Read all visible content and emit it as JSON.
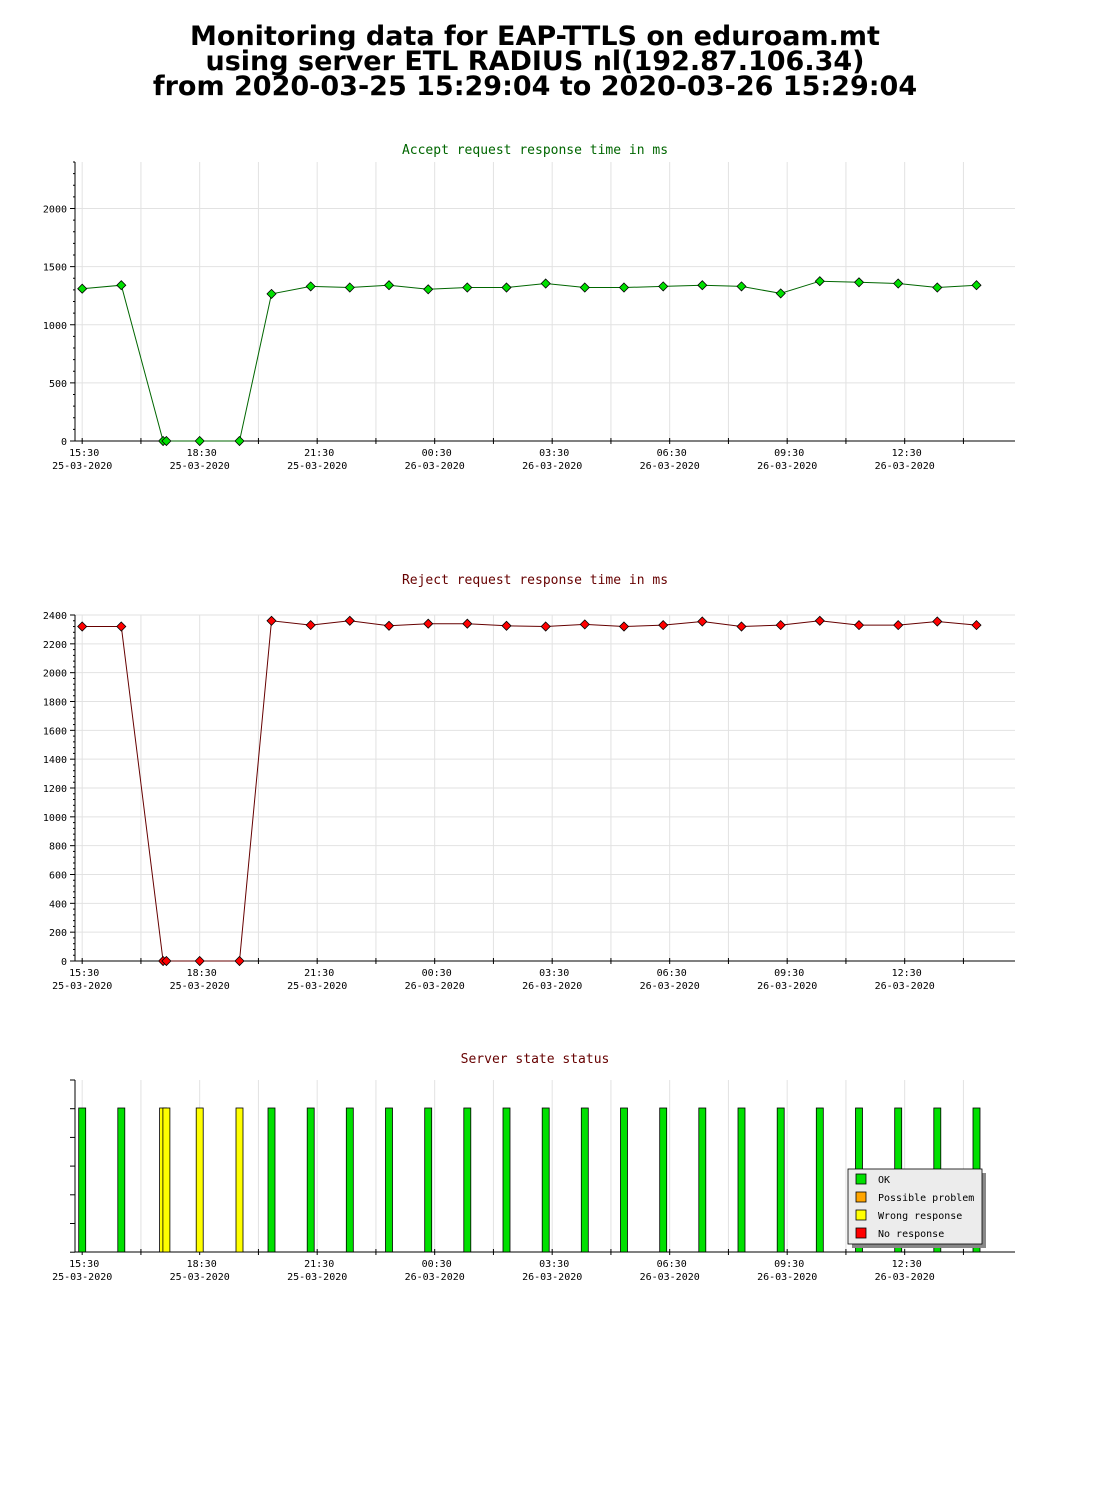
{
  "header": {
    "line1": "Monitoring data for EAP-TTLS on eduroam.mt",
    "line2": "using server ETL RADIUS nl(192.87.106.34)",
    "line3": "from 2020-03-25 15:29:04 to 2020-03-26 15:29:04"
  },
  "colors": {
    "ok": "#00e000",
    "possible": "#ffa500",
    "wrong": "#ffff00",
    "none": "#ff0000",
    "accent_title": "#006600",
    "reject_title": "#660000"
  },
  "x_ticks": [
    {
      "time": "15:30",
      "date": "25-03-2020"
    },
    {
      "time": "18:30",
      "date": "25-03-2020"
    },
    {
      "time": "21:30",
      "date": "25-03-2020"
    },
    {
      "time": "00:30",
      "date": "26-03-2020"
    },
    {
      "time": "03:30",
      "date": "26-03-2020"
    },
    {
      "time": "06:30",
      "date": "26-03-2020"
    },
    {
      "time": "09:30",
      "date": "26-03-2020"
    },
    {
      "time": "12:30",
      "date": "26-03-2020"
    }
  ],
  "chart_data": [
    {
      "type": "line",
      "title": "Accept request response time in ms",
      "x_range": [
        "2020-03-25 15:19",
        "2020-03-26 15:19"
      ],
      "ylim": [
        0,
        2400
      ],
      "y_ticks": [
        0,
        500,
        1000,
        1500,
        2000
      ],
      "x": [
        "2020-03-25 15:30",
        "2020-03-25 16:30",
        "2020-03-25 17:34",
        "2020-03-25 17:39",
        "2020-03-25 18:30",
        "2020-03-25 19:31",
        "2020-03-25 20:20",
        "2020-03-25 21:20",
        "2020-03-25 22:20",
        "2020-03-25 23:20",
        "2020-03-26 00:20",
        "2020-03-26 01:20",
        "2020-03-26 02:20",
        "2020-03-26 03:20",
        "2020-03-26 04:20",
        "2020-03-26 05:20",
        "2020-03-26 06:20",
        "2020-03-26 07:20",
        "2020-03-26 08:20",
        "2020-03-26 09:20",
        "2020-03-26 10:20",
        "2020-03-26 11:20",
        "2020-03-26 12:20",
        "2020-03-26 13:20",
        "2020-03-26 14:20"
      ],
      "values": [
        1310,
        1340,
        0,
        0,
        0,
        0,
        1265,
        1330,
        1320,
        1340,
        1305,
        1320,
        1320,
        1355,
        1320,
        1320,
        1330,
        1340,
        1330,
        1270,
        1375,
        1365,
        1355,
        1320,
        1340
      ]
    },
    {
      "type": "line",
      "title": "Reject request response time in ms",
      "x_range": [
        "2020-03-25 15:19",
        "2020-03-26 15:19"
      ],
      "ylim": [
        0,
        2400
      ],
      "y_ticks": [
        0,
        200,
        400,
        600,
        800,
        1000,
        1200,
        1400,
        1600,
        1800,
        2000,
        2200,
        2400
      ],
      "x": [
        "2020-03-25 15:30",
        "2020-03-25 16:30",
        "2020-03-25 17:34",
        "2020-03-25 17:39",
        "2020-03-25 18:30",
        "2020-03-25 19:31",
        "2020-03-25 20:20",
        "2020-03-25 21:20",
        "2020-03-25 22:20",
        "2020-03-25 23:20",
        "2020-03-26 00:20",
        "2020-03-26 01:20",
        "2020-03-26 02:20",
        "2020-03-26 03:20",
        "2020-03-26 04:20",
        "2020-03-26 05:20",
        "2020-03-26 06:20",
        "2020-03-26 07:20",
        "2020-03-26 08:20",
        "2020-03-26 09:20",
        "2020-03-26 10:20",
        "2020-03-26 11:20",
        "2020-03-26 12:20",
        "2020-03-26 13:20",
        "2020-03-26 14:20"
      ],
      "values": [
        2320,
        2320,
        0,
        0,
        0,
        0,
        2360,
        2330,
        2360,
        2325,
        2340,
        2340,
        2325,
        2320,
        2335,
        2320,
        2330,
        2355,
        2320,
        2330,
        2360,
        2330,
        2330,
        2355,
        2330
      ]
    },
    {
      "type": "bar",
      "title": "Server state status",
      "x_range": [
        "2020-03-25 15:19",
        "2020-03-26 15:19"
      ],
      "x": [
        "2020-03-25 15:30",
        "2020-03-25 16:30",
        "2020-03-25 17:34",
        "2020-03-25 17:39",
        "2020-03-25 18:30",
        "2020-03-25 19:31",
        "2020-03-25 20:20",
        "2020-03-25 21:20",
        "2020-03-25 22:20",
        "2020-03-25 23:20",
        "2020-03-26 00:20",
        "2020-03-26 01:20",
        "2020-03-26 02:20",
        "2020-03-26 03:20",
        "2020-03-26 04:20",
        "2020-03-26 05:20",
        "2020-03-26 06:20",
        "2020-03-26 07:20",
        "2020-03-26 08:20",
        "2020-03-26 09:20",
        "2020-03-26 10:20",
        "2020-03-26 11:20",
        "2020-03-26 12:20",
        "2020-03-26 13:20",
        "2020-03-26 14:20"
      ],
      "states": [
        "ok",
        "ok",
        "wrong",
        "wrong",
        "wrong",
        "wrong",
        "ok",
        "ok",
        "ok",
        "ok",
        "ok",
        "ok",
        "ok",
        "ok",
        "ok",
        "ok",
        "ok",
        "ok",
        "ok",
        "ok",
        "ok",
        "ok",
        "ok",
        "ok",
        "ok"
      ],
      "legend": [
        {
          "key": "ok",
          "label": "OK"
        },
        {
          "key": "possible",
          "label": "Possible problem"
        },
        {
          "key": "wrong",
          "label": "Wrong response"
        },
        {
          "key": "none",
          "label": "No response"
        }
      ],
      "legend_position": "bottom-right"
    }
  ]
}
